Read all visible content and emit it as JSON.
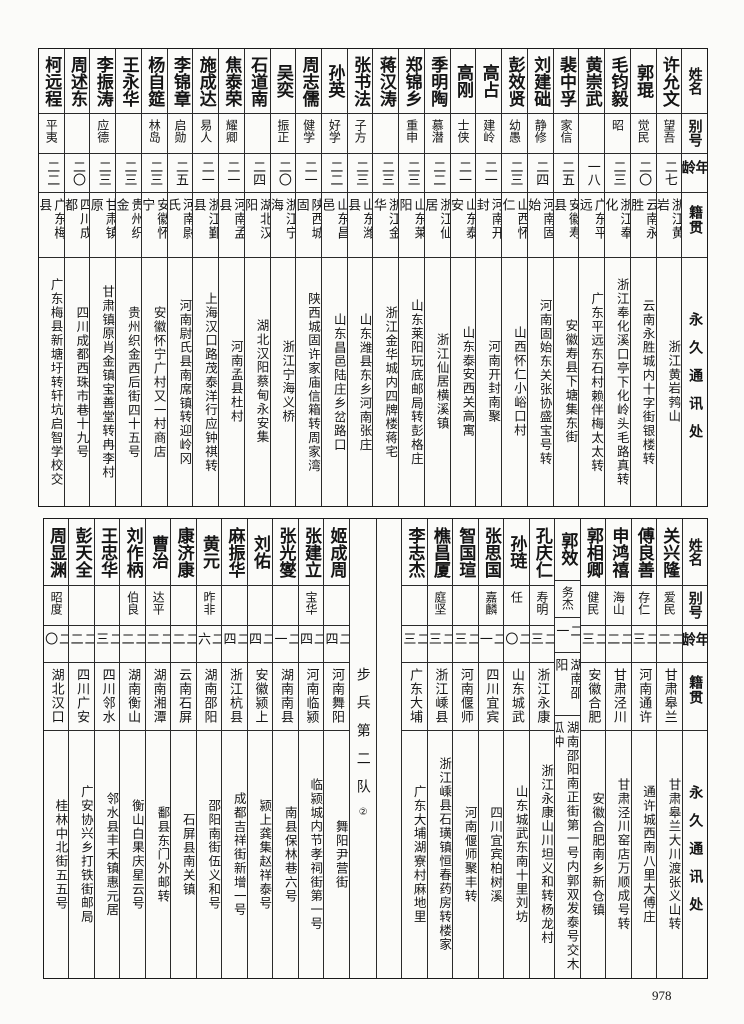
{
  "page_number": "978",
  "headers": {
    "name": "姓名",
    "alias": "别号",
    "age": "年龄",
    "native": "籍贯",
    "address": "永久通讯处"
  },
  "top_table": {
    "rows": [
      {
        "name": "许允文",
        "alias": "望吾",
        "age": "二七",
        "native": "浙江黄岩",
        "address": "浙江黄岩鹁山"
      },
      {
        "name": "郭琨",
        "alias": "觉民",
        "age": "二〇",
        "native": "云南永胜",
        "address": "云南永胜城内十字街银楼转"
      },
      {
        "name": "毛钧毅",
        "alias": "昭",
        "age": "二三",
        "native": "浙江奉化",
        "address": "浙江奉化溪口亭下化岭头毛路真转"
      },
      {
        "name": "黄崇武",
        "alias": "",
        "age": "一八",
        "native": "广东平远",
        "address": "广东平远东石村赖伴梅太太转"
      },
      {
        "name": "裴中孚",
        "alias": "家信",
        "age": "二五",
        "native": "安徽寿县",
        "address": "安徽寿县下塘集东街"
      },
      {
        "name": "刘建础",
        "alias": "静修",
        "age": "二四",
        "native": "河南固始",
        "address": "河南固始东关张协盛宝号转"
      },
      {
        "name": "彭效贤",
        "alias": "幼愚",
        "age": "二三",
        "native": "山西怀仁",
        "address": "山西怀仁小峪口村"
      },
      {
        "name": "高占",
        "alias": "建岭",
        "age": "二一",
        "native": "河南开封",
        "address": "河南开封南聚"
      },
      {
        "name": "高刚",
        "alias": "士侠",
        "age": "二一",
        "native": "山东泰安",
        "address": "山东泰安西关高寓"
      },
      {
        "name": "季明陶",
        "alias": "慕潜",
        "age": "二二",
        "native": "浙江仙居",
        "address": "浙江仙居横溪镇"
      },
      {
        "name": "郑锦乡",
        "alias": "重申",
        "age": "二三",
        "native": "山东莱阳",
        "address": "山东莱阳玩底邮局转彭格庄"
      },
      {
        "name": "蒋汉涛",
        "alias": "",
        "age": "二三",
        "native": "浙江金华",
        "address": "浙江金华城内四牌楼蒋宅"
      },
      {
        "name": "张书法",
        "alias": "子方",
        "age": "二三",
        "native": "山东潍县",
        "address": "山东潍县东乡河南张庄"
      },
      {
        "name": "孙英",
        "alias": "好学",
        "age": "二二",
        "native": "山东昌邑",
        "address": "山东昌邑陆庄乡岔路口"
      },
      {
        "name": "周志儒",
        "alias": "健学",
        "age": "二一",
        "native": "陕西城固",
        "address": "陕西城固许家庙信箱转周家湾"
      },
      {
        "name": "吴奕",
        "alias": "振正",
        "age": "二〇",
        "native": "浙江宁海",
        "address": "浙江宁海义桥"
      },
      {
        "name": "石道南",
        "alias": "",
        "age": "二四",
        "native": "湖北汉阳",
        "address": "湖北汉阳蔡甸永安集"
      },
      {
        "name": "焦泰荣",
        "alias": "耀卿",
        "age": "二一",
        "native": "河南孟县",
        "address": "河南孟县杜村"
      },
      {
        "name": "施成达",
        "alias": "易人",
        "age": "二一",
        "native": "浙江鄞县",
        "address": "上海汉口路茂泰洋行应钟祺转"
      },
      {
        "name": "李锦章",
        "alias": "启勋",
        "age": "二五",
        "native": "河南尉氏",
        "address": "河南尉氏县南席镇转迎岭冈"
      },
      {
        "name": "杨自筵",
        "alias": "林岛",
        "age": "二三",
        "native": "安徽怀宁",
        "address": "安徽怀宁广村又一村商店"
      },
      {
        "name": "王永华",
        "alias": "",
        "age": "二三",
        "native": "贵州织金",
        "address": "贵州织金西后街四十五号"
      },
      {
        "name": "李振涛",
        "alias": "应德",
        "age": "二三",
        "native": "甘肃镇原",
        "address": "甘肃镇原肖金镇宝善堂转冉李村"
      },
      {
        "name": "周述东",
        "alias": "",
        "age": "二〇",
        "native": "四川成都",
        "address": "四川成都西珠市巷十九号"
      },
      {
        "name": "柯远程",
        "alias": "平夷",
        "age": "二二",
        "native": "广东梅县",
        "address": "广东梅县新塘圩转轩坑启智学校交"
      }
    ]
  },
  "bottom_table": {
    "section_label": "步兵第二队",
    "section_mark": "②",
    "rows_right": [
      {
        "name": "关兴隆",
        "alias": "爱民",
        "age": "二二",
        "native": "甘肃皋兰",
        "address": "甘肃皋兰大川渡张义山转"
      },
      {
        "name": "傅良善",
        "alias": "存仁",
        "age": "二三",
        "native": "河南通许",
        "address": "通许城西南八里大傅庄"
      },
      {
        "name": "申鸿禧",
        "alias": "海山",
        "age": "二二",
        "native": "甘肃泾川",
        "address": "甘肃泾川窑店万顺成号转"
      },
      {
        "name": "郭相卿",
        "alias": "健民",
        "age": "二三",
        "native": "安徽合肥",
        "address": "安徽合肥南乡新仓镇"
      },
      {
        "name": "郭效",
        "alias": "务杰",
        "age": "二一",
        "native": "湖南邵阳",
        "address": "湖南邵阳南正街第一号内郭双发泰号交木瓜冲"
      },
      {
        "name": "孔庆仁",
        "alias": "寿明",
        "age": "二三",
        "native": "浙江永康",
        "address": "浙江永康山川坦义和转杨龙村"
      },
      {
        "name": "孙琏",
        "alias": "任",
        "age": "二〇",
        "native": "山东城武",
        "address": "山东城武东南十里刘坊"
      },
      {
        "name": "张思国",
        "alias": "嘉麟",
        "age": "二一",
        "native": "四川宜宾",
        "address": "四川宜宾柏树溪"
      },
      {
        "name": "智国瑄",
        "alias": "",
        "age": "二三",
        "native": "河南偃师",
        "address": "河南偃师聚丰转"
      },
      {
        "name": "樵昌厦",
        "alias": "庭坚",
        "age": "二三",
        "native": "浙江嵊县",
        "address": "浙江嵊县石璜镇恒春药房转楼家"
      },
      {
        "name": "李志杰",
        "alias": "",
        "age": "二三",
        "native": "广东大埔",
        "address": "广东大埔湖寮村麻地里"
      }
    ],
    "rows_left": [
      {
        "name": "姬成周",
        "alias": "",
        "age": "二四",
        "native": "河南舞阳",
        "address": "舞阳尹营街"
      },
      {
        "name": "张建立",
        "alias": "宝华",
        "age": "二四",
        "native": "河南临颍",
        "address": "临颍城内节孝祠街第一号"
      },
      {
        "name": "张光燮",
        "alias": "",
        "age": "二一",
        "native": "湖南南县",
        "address": "南县保林巷六号"
      },
      {
        "name": "刘佑",
        "alias": "",
        "age": "二四",
        "native": "安徽颍上",
        "address": "颍上龚集赵祥泰号"
      },
      {
        "name": "麻振华",
        "alias": "",
        "age": "二四",
        "native": "浙江杭县",
        "address": "成都吉祥街新增一号"
      },
      {
        "name": "黄元",
        "alias": "昨非",
        "age": "二六",
        "native": "湖南邵阳",
        "address": "邵阳南街伍义和号"
      },
      {
        "name": "康济康",
        "alias": "",
        "age": "二二",
        "native": "云南石屏",
        "address": "石屏县南关镇"
      },
      {
        "name": "曹治",
        "alias": "达平",
        "age": "二二",
        "native": "湖南湘潭",
        "address": "鄱县东门外邮转"
      },
      {
        "name": "刘作柄",
        "alias": "伯良",
        "age": "二二",
        "native": "湖南衡山",
        "address": "衡山白果庆星云号"
      },
      {
        "name": "王忠华",
        "alias": "",
        "age": "二三",
        "native": "四川邻水",
        "address": "邻水县丰禾镇惠元居"
      },
      {
        "name": "彭天全",
        "alias": "",
        "age": "二二",
        "native": "四川广安",
        "address": "广安协兴乡打铁街邮局"
      },
      {
        "name": "周显渊",
        "alias": "昭度",
        "age": "二〇",
        "native": "湖北汉口",
        "address": "桂林中北街五五号"
      }
    ]
  }
}
